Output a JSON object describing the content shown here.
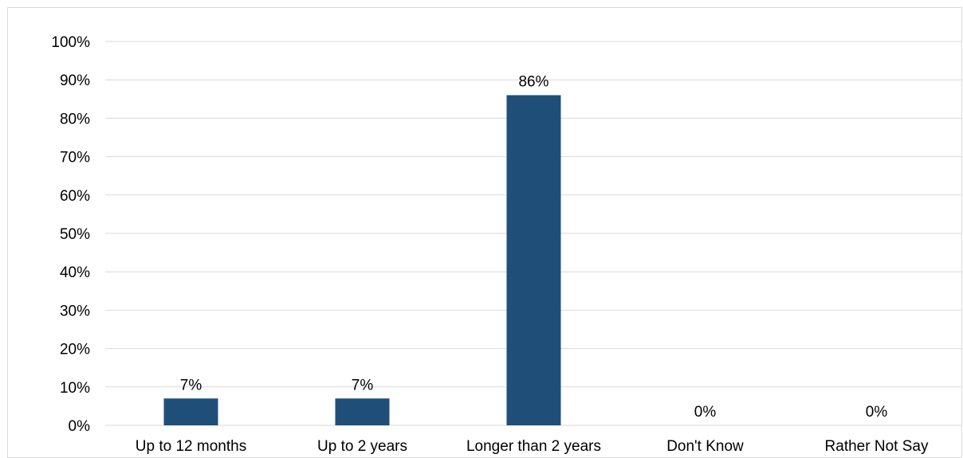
{
  "chart_data": {
    "type": "bar",
    "categories": [
      "Up to 12 months",
      "Up to 2 years",
      "Longer than 2 years",
      "Don't Know",
      "Rather Not Say"
    ],
    "values": [
      7,
      7,
      86,
      0,
      0
    ],
    "data_labels": [
      "7%",
      "7%",
      "86%",
      "0%",
      "0%"
    ],
    "title": "",
    "xlabel": "",
    "ylabel": "",
    "ylim": [
      0,
      100
    ],
    "y_ticks": [
      0,
      10,
      20,
      30,
      40,
      50,
      60,
      70,
      80,
      90,
      100
    ],
    "y_tick_labels": [
      "0%",
      "10%",
      "20%",
      "30%",
      "40%",
      "50%",
      "60%",
      "70%",
      "80%",
      "90%",
      "100%"
    ],
    "grid": true,
    "legend": "none",
    "colors": {
      "bar": "#1f4e79",
      "grid": "#d9d9d9",
      "text": "#000000"
    }
  }
}
